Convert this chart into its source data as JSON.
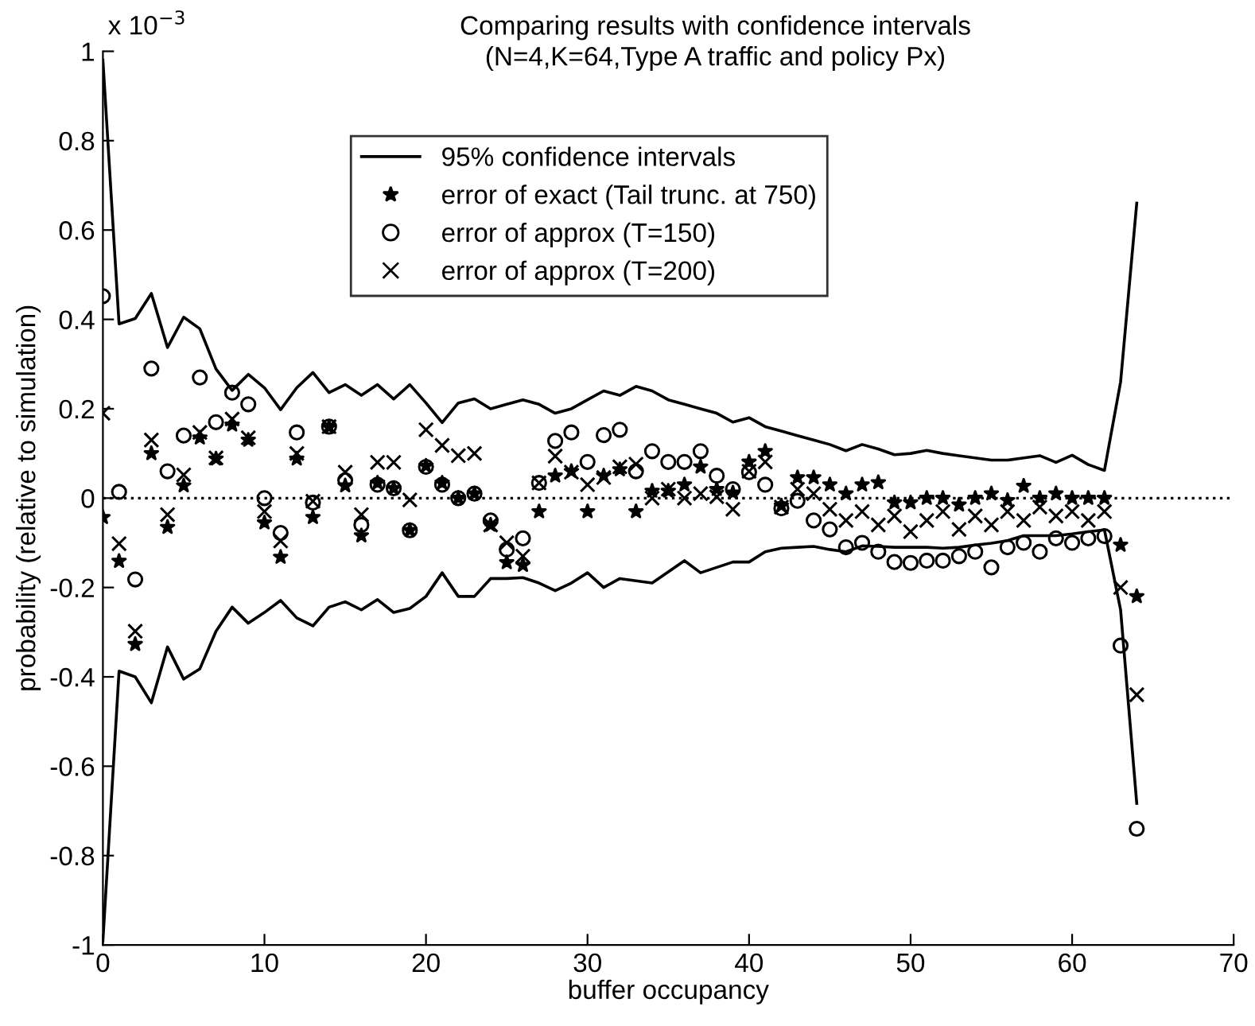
{
  "chart_data": {
    "type": "scatter",
    "title": "Comparing results with confidence intervals",
    "subtitle": "(N=4,K=64,Type A traffic and policy Px)",
    "xlabel": "buffer occupancy",
    "ylabel": "probability (relative to simulation)",
    "annotations": [
      "x 10$^{−3}$"
    ],
    "xlim": [
      0,
      70
    ],
    "xticks": [
      0,
      10,
      20,
      30,
      40,
      50,
      60,
      70
    ],
    "ylim": [
      -1,
      1
    ],
    "yticks": [
      -1,
      -0.8,
      -0.6,
      -0.4,
      -0.2,
      0,
      0.2,
      0.4,
      0.6,
      0.8,
      1
    ],
    "grid": false,
    "legend": "top",
    "ref_lines": [
      {
        "axis": "y",
        "value": 0,
        "color": "#000000",
        "line_style": "dotted"
      }
    ],
    "series": [
      {
        "name": "95% confidence intervals",
        "type": "line",
        "color": "#000000",
        "marker": "none",
        "line_style": "solid",
        "x": [
          0,
          1,
          2,
          3,
          4,
          5,
          6,
          7,
          8,
          9,
          10,
          11,
          12,
          13,
          14,
          15,
          16,
          17,
          18,
          19,
          20,
          21,
          22,
          23,
          24,
          25,
          26,
          27,
          28,
          29,
          30,
          31,
          32,
          33,
          34,
          35,
          36,
          37,
          38,
          39,
          40,
          41,
          42,
          43,
          44,
          45,
          46,
          47,
          48,
          49,
          50,
          51,
          52,
          53,
          54,
          55,
          56,
          57,
          58,
          59,
          60,
          61,
          62,
          63,
          64
        ],
        "values": [
          0.98,
          0.39,
          0.402,
          0.458,
          0.337,
          0.405,
          0.379,
          0.289,
          0.241,
          0.277,
          0.247,
          0.198,
          0.247,
          0.281,
          0.236,
          0.254,
          0.23,
          0.254,
          0.222,
          0.254,
          0.213,
          0.169,
          0.213,
          0.222,
          0.2,
          0.21,
          0.22,
          0.21,
          0.19,
          0.2,
          0.22,
          0.24,
          0.23,
          0.25,
          0.24,
          0.22,
          0.21,
          0.2,
          0.19,
          0.17,
          0.18,
          0.16,
          0.15,
          0.14,
          0.13,
          0.12,
          0.106,
          0.12,
          0.11,
          0.097,
          0.1,
          0.107,
          0.1,
          0.095,
          0.09,
          0.085,
          0.085,
          0.09,
          0.095,
          0.08,
          0.096,
          0.075,
          0.062,
          0.26,
          0.66
        ]
      },
      {
        "type": "line",
        "color": "#000000",
        "marker": "none",
        "line_style": "solid",
        "x": [
          0,
          1,
          2,
          3,
          4,
          5,
          6,
          7,
          8,
          9,
          10,
          11,
          12,
          13,
          14,
          15,
          16,
          17,
          18,
          19,
          20,
          21,
          22,
          23,
          24,
          25,
          26,
          27,
          28,
          29,
          30,
          31,
          32,
          33,
          34,
          35,
          36,
          37,
          38,
          39,
          40,
          41,
          42,
          43,
          44,
          45,
          46,
          47,
          48,
          49,
          50,
          51,
          52,
          53,
          54,
          55,
          56,
          57,
          58,
          59,
          60,
          61,
          62,
          63,
          64
        ],
        "values": [
          -0.99,
          -0.387,
          -0.4,
          -0.458,
          -0.333,
          -0.405,
          -0.382,
          -0.298,
          -0.244,
          -0.28,
          -0.256,
          -0.229,
          -0.268,
          -0.286,
          -0.244,
          -0.232,
          -0.25,
          -0.227,
          -0.256,
          -0.247,
          -0.22,
          -0.167,
          -0.22,
          -0.22,
          -0.18,
          -0.18,
          -0.178,
          -0.19,
          -0.207,
          -0.19,
          -0.167,
          -0.2,
          -0.18,
          -0.185,
          -0.19,
          -0.165,
          -0.14,
          -0.167,
          -0.155,
          -0.143,
          -0.143,
          -0.12,
          -0.112,
          -0.11,
          -0.108,
          -0.115,
          -0.12,
          -0.107,
          -0.108,
          -0.11,
          -0.11,
          -0.11,
          -0.112,
          -0.11,
          -0.105,
          -0.101,
          -0.095,
          -0.084,
          -0.084,
          -0.084,
          -0.08,
          -0.075,
          -0.071,
          -0.25,
          -0.683
        ]
      },
      {
        "name": "error of exact (Tail trunc. at 750)",
        "color": "#000000",
        "marker": "star",
        "x": [
          0,
          1,
          2,
          3,
          4,
          5,
          6,
          7,
          8,
          9,
          10,
          11,
          12,
          13,
          14,
          15,
          16,
          17,
          18,
          19,
          20,
          21,
          22,
          23,
          24,
          25,
          26,
          27,
          28,
          29,
          30,
          31,
          32,
          33,
          34,
          35,
          36,
          37,
          38,
          39,
          40,
          41,
          42,
          43,
          44,
          45,
          46,
          47,
          48,
          49,
          50,
          51,
          52,
          53,
          54,
          55,
          56,
          57,
          58,
          59,
          60,
          61,
          62,
          63,
          64
        ],
        "values": [
          -0.043,
          -0.141,
          -0.327,
          0.1,
          -0.065,
          0.028,
          0.135,
          0.088,
          0.164,
          0.13,
          -0.055,
          -0.132,
          0.088,
          -0.043,
          0.159,
          0.028,
          -0.084,
          0.034,
          0.022,
          -0.072,
          0.072,
          0.034,
          0.0,
          0.01,
          -0.06,
          -0.144,
          -0.15,
          -0.03,
          0.05,
          0.06,
          -0.03,
          0.05,
          0.064,
          -0.03,
          0.016,
          0.016,
          0.03,
          0.07,
          0.02,
          0.012,
          0.081,
          0.105,
          -0.017,
          0.046,
          0.046,
          0.03,
          0.01,
          0.03,
          0.035,
          -0.01,
          -0.01,
          0.0,
          0.0,
          -0.015,
          0.0,
          0.01,
          -0.005,
          0.027,
          0.0,
          0.01,
          0.0,
          0.0,
          0.0,
          -0.105,
          -0.22
        ]
      },
      {
        "name": "error of approx (T=150)",
        "color": "#000000",
        "marker": "circle",
        "x": [
          0,
          1,
          2,
          3,
          4,
          5,
          6,
          7,
          8,
          9,
          10,
          11,
          12,
          13,
          14,
          15,
          16,
          17,
          18,
          19,
          20,
          21,
          22,
          23,
          24,
          25,
          26,
          27,
          28,
          29,
          30,
          31,
          32,
          33,
          34,
          35,
          36,
          37,
          38,
          39,
          40,
          41,
          42,
          43,
          44,
          45,
          46,
          47,
          48,
          49,
          50,
          51,
          52,
          53,
          54,
          55,
          56,
          57,
          58,
          59,
          60,
          61,
          62,
          63,
          64
        ],
        "values": [
          0.452,
          0.014,
          -0.182,
          0.29,
          0.06,
          0.14,
          0.27,
          0.17,
          0.236,
          0.21,
          0.0,
          -0.078,
          0.147,
          -0.01,
          0.16,
          0.04,
          -0.06,
          0.03,
          0.022,
          -0.072,
          0.07,
          0.03,
          0.0,
          0.01,
          -0.05,
          -0.115,
          -0.09,
          0.034,
          0.128,
          0.147,
          0.081,
          0.141,
          0.153,
          0.06,
          0.105,
          0.081,
          0.081,
          0.105,
          0.05,
          0.02,
          0.058,
          0.03,
          -0.023,
          -0.006,
          -0.05,
          -0.07,
          -0.11,
          -0.1,
          -0.12,
          -0.143,
          -0.145,
          -0.14,
          -0.14,
          -0.13,
          -0.12,
          -0.155,
          -0.11,
          -0.1,
          -0.12,
          -0.09,
          -0.1,
          -0.09,
          -0.085,
          -0.33,
          -0.74
        ]
      },
      {
        "name": "error of approx (T=200)",
        "color": "#000000",
        "marker": "cross",
        "x": [
          0,
          1,
          2,
          3,
          4,
          5,
          6,
          7,
          8,
          9,
          10,
          11,
          12,
          13,
          14,
          15,
          16,
          17,
          18,
          19,
          20,
          21,
          22,
          23,
          24,
          25,
          26,
          27,
          28,
          29,
          30,
          31,
          32,
          33,
          34,
          35,
          36,
          37,
          38,
          39,
          40,
          41,
          42,
          43,
          44,
          45,
          46,
          47,
          48,
          49,
          50,
          51,
          52,
          53,
          54,
          55,
          56,
          57,
          58,
          59,
          60,
          61,
          62,
          63,
          64
        ],
        "values": [
          0.19,
          -0.102,
          -0.298,
          0.13,
          -0.037,
          0.052,
          0.147,
          0.09,
          0.177,
          0.135,
          -0.03,
          -0.096,
          0.1,
          -0.007,
          0.16,
          0.058,
          -0.037,
          0.08,
          0.08,
          -0.004,
          0.153,
          0.118,
          0.095,
          0.1,
          -0.06,
          -0.1,
          -0.13,
          0.034,
          0.094,
          0.058,
          0.03,
          0.046,
          0.07,
          0.076,
          0.0,
          0.02,
          0.0,
          0.01,
          0.003,
          -0.025,
          0.06,
          0.081,
          -0.02,
          0.02,
          0.01,
          -0.025,
          -0.05,
          -0.03,
          -0.06,
          -0.04,
          -0.075,
          -0.05,
          -0.03,
          -0.07,
          -0.04,
          -0.06,
          -0.03,
          -0.05,
          -0.02,
          -0.04,
          -0.03,
          -0.05,
          -0.03,
          -0.2,
          -0.44
        ]
      }
    ]
  }
}
